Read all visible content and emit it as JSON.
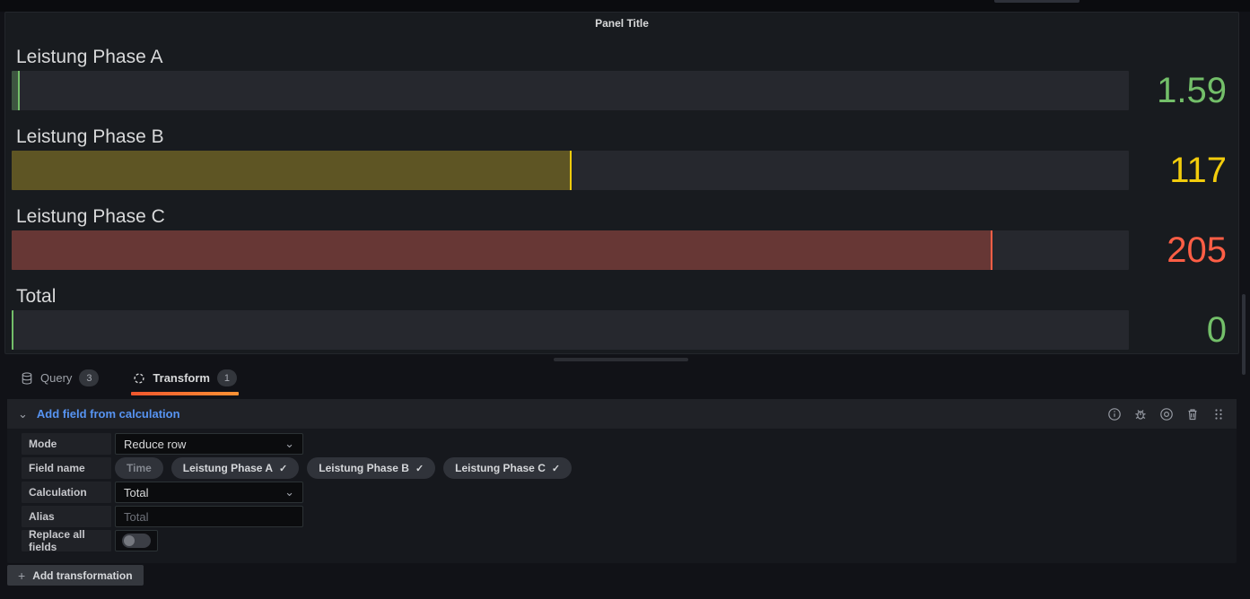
{
  "panel": {
    "title": "Panel Title",
    "gauges": [
      {
        "name": "Leistung Phase A",
        "value": "1.59",
        "color": "#73BF69",
        "fill_color": "rgba(115,191,105,0.30)",
        "fill_pct": 0.7
      },
      {
        "name": "Leistung Phase B",
        "value": "117",
        "color": "#F2CC0C",
        "fill_color": "rgba(242,204,12,0.28)",
        "fill_pct": 50.1
      },
      {
        "name": "Leistung Phase C",
        "value": "205",
        "color": "#FF5E45",
        "fill_color": "rgba(255,94,69,0.30)",
        "fill_pct": 87.8
      },
      {
        "name": "Total",
        "value": "0",
        "color": "#73BF69",
        "fill_color": "rgba(115,191,105,0.30)",
        "fill_pct": 0.15
      }
    ]
  },
  "chart_data": {
    "type": "bar",
    "categories": [
      "Leistung Phase A",
      "Leistung Phase B",
      "Leistung Phase C",
      "Total"
    ],
    "values": [
      1.59,
      117,
      205,
      0
    ],
    "title": "Panel Title",
    "orientation": "horizontal",
    "value_colors": [
      "#73BF69",
      "#F2CC0C",
      "#FF5E45",
      "#73BF69"
    ]
  },
  "editor": {
    "tabs": [
      {
        "label": "Query",
        "badge": "3",
        "active": false
      },
      {
        "label": "Transform",
        "badge": "1",
        "active": true
      }
    ],
    "transformation": {
      "title": "Add field from calculation",
      "mode_label": "Mode",
      "mode_value": "Reduce row",
      "field_name_label": "Field name",
      "chips": [
        {
          "label": "Time",
          "checked": false
        },
        {
          "label": "Leistung Phase A",
          "checked": true
        },
        {
          "label": "Leistung Phase B",
          "checked": true
        },
        {
          "label": "Leistung Phase C",
          "checked": true
        }
      ],
      "calculation_label": "Calculation",
      "calculation_value": "Total",
      "alias_label": "Alias",
      "alias_placeholder": "Total",
      "replace_label": "Replace all fields",
      "replace_on": false
    },
    "add_button": "Add transformation"
  },
  "icons": {
    "check": "✓",
    "chevron_down": "⌄",
    "collapse_chevron": "⌄",
    "plus": "+"
  },
  "colors": {
    "green": "#73BF69",
    "yellow": "#F2CC0C",
    "red": "#FF5E45",
    "accent_blue": "#5794F2",
    "tab_gradient_start": "#F0562D",
    "tab_gradient_end": "#FF9234",
    "panel_bg": "#181B1F",
    "page_bg": "#111217"
  }
}
